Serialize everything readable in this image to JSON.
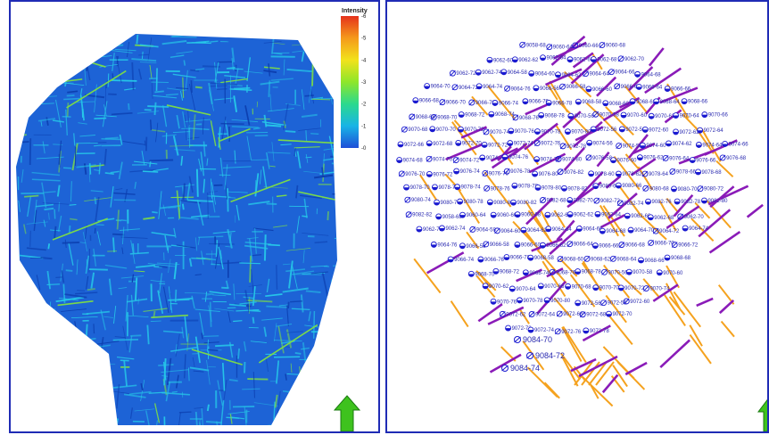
{
  "colorbar": {
    "title": "Intensity",
    "ticks": [
      "0",
      "1",
      "2",
      "3",
      "4",
      "5",
      "6"
    ],
    "colors": [
      "#1e4fd8",
      "#18b4e6",
      "#2bd98e",
      "#8ee62a",
      "#f2e21c",
      "#f59a1c",
      "#e5321c"
    ]
  },
  "map_colors": {
    "map_base": "#1d63d6",
    "map_light": "#26c7e8",
    "map_green": "#7ad94a",
    "fracture_orange": "#f5a21e",
    "fracture_purple": "#8a1bb8",
    "well_blue": "#1a1ad0",
    "north_arrow": "#3ec21e"
  },
  "wells": {
    "left_x": [
      {
        "name": "9058-68",
        "x": 0,
        "y": 0
      },
      {
        "name": "9060-64",
        "x": 0,
        "y": 0
      },
      {
        "name": "9060-66",
        "x": 0,
        "y": 0
      },
      {
        "name": "9060-68",
        "x": 0,
        "y": 0
      },
      {
        "name": "9062-60",
        "x": 0,
        "y": 0
      },
      {
        "name": "9062-62",
        "x": 0,
        "y": 0
      },
      {
        "name": "9062-64",
        "x": 0,
        "y": 0
      },
      {
        "name": "9062-66",
        "x": 0,
        "y": 0
      },
      {
        "name": "9062-68",
        "x": 0,
        "y": 0
      },
      {
        "name": "9062-70",
        "x": 0,
        "y": 0
      },
      {
        "name": "9064-60",
        "x": 0,
        "y": 0
      },
      {
        "name": "9064-62",
        "x": 0,
        "y": 0
      },
      {
        "name": "9064-64",
        "x": 0,
        "y": 0
      },
      {
        "name": "9064-66",
        "x": 0,
        "y": 0
      },
      {
        "name": "9064-68",
        "x": 0,
        "y": 0
      },
      {
        "name": "9064-72",
        "x": 0,
        "y": 0
      }
    ]
  },
  "well_labels": [
    "9058-68",
    "9060-64",
    "9060-66",
    "9060-68",
    "9062-60",
    "9062-62",
    "9062-64",
    "9062-66",
    "9062-68",
    "9062-70",
    "9062-72",
    "9062-74",
    "9064-58",
    "9064-60",
    "9064-62",
    "9064-64",
    "9064-66",
    "9064-68",
    "9064-70",
    "9064-72",
    "9064-74",
    "9064-76",
    "9066-56",
    "9066-58",
    "9066-60",
    "9066-62",
    "9066-64",
    "9066-66",
    "9066-68",
    "9066-70",
    "9066-72",
    "9066-74",
    "9066-76",
    "9066-78",
    "9068-58",
    "9068-60",
    "9068-62",
    "9068-64",
    "9068-66",
    "9068-68",
    "9068-70",
    "9068-72",
    "9068-74",
    "9068-76",
    "9068-78",
    "9070-56",
    "9070-58",
    "9070-60",
    "9070-62",
    "9070-64",
    "9070-66",
    "9070-68",
    "9070-70",
    "9070-72",
    "9070-74",
    "9070-76",
    "9070-78",
    "9070-80",
    "9072-56",
    "9072-58",
    "9072-60",
    "9072-62",
    "9072-64",
    "9072-66",
    "9072-68",
    "9072-70",
    "9072-72",
    "9072-74",
    "9072-76",
    "9072-78",
    "9074-56",
    "9074-58",
    "9074-60",
    "9074-62",
    "9074-64",
    "9074-66",
    "9074-68",
    "9074-70",
    "9074-72",
    "9074-74",
    "9074-76",
    "9074-78",
    "9074-80",
    "9076-58",
    "9076-60",
    "9076-62",
    "9076-64",
    "9076-66",
    "9076-68",
    "9076-70",
    "9076-72",
    "9076-74",
    "9076-76",
    "9076-78",
    "9076-80",
    "9076-82",
    "9078-60",
    "9078-62",
    "9078-64",
    "9078-66",
    "9078-68",
    "9078-70",
    "9078-72",
    "9078-74",
    "9078-76",
    "9078-78",
    "9078-80",
    "9078-82",
    "9080-64",
    "9080-66",
    "9080-68",
    "9080-70",
    "9080-72",
    "9080-74",
    "9080-76",
    "9080-78",
    "9080-80",
    "9080-82",
    "9082-68",
    "9082-70",
    "9082-72",
    "9082-74",
    "9082-76",
    "9082-78",
    "9082-80",
    "9082-82"
  ],
  "big_labels": [
    "9084-70",
    "9084-72",
    "9084-74"
  ]
}
